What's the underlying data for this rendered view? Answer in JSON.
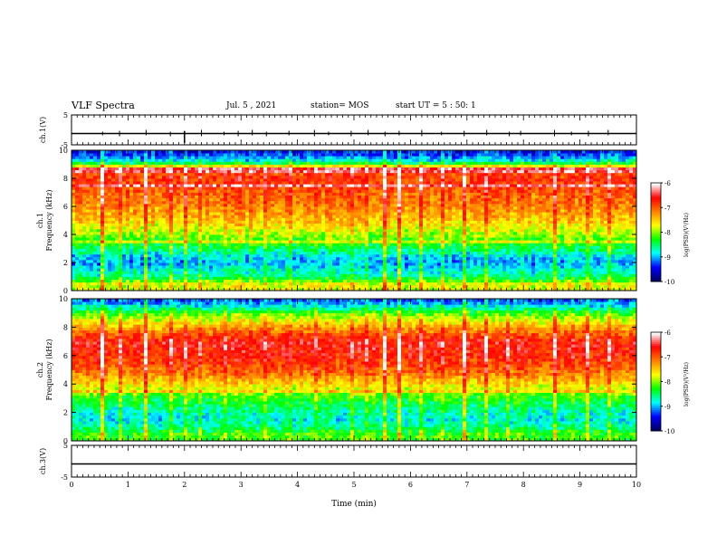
{
  "header": {
    "title": "VLF Spectra",
    "date": "Jul. 5 , 2021",
    "station": "station= MOS",
    "start": "start UT = 5 : 50: 1"
  },
  "chart_data": [
    {
      "id": "ch1_waveform",
      "type": "line",
      "ylabel": "ch.1(V)",
      "ylim": [
        -5,
        5
      ],
      "yticks": [
        "5",
        "-5"
      ],
      "xlim": [
        0,
        10
      ],
      "baseline": 0,
      "color": "#000000"
    },
    {
      "id": "ch1_spectrogram",
      "type": "heatmap",
      "ylabel": "ch.1\nFrequency (kHz)",
      "ylabel_lines": [
        "ch.1",
        "Frequency (kHz)"
      ],
      "xlim": [
        0,
        10
      ],
      "ylim": [
        0,
        10
      ],
      "yticks": [
        "0",
        "2",
        "4",
        "6",
        "8",
        "10"
      ],
      "colorbar": {
        "label": "log(PSD)(V²/Hz)",
        "range": [
          -10,
          -6
        ],
        "ticks": [
          "-6",
          "-7",
          "-8",
          "-9",
          "-10"
        ],
        "colors": [
          "#000060",
          "#0000ff",
          "#00ffff",
          "#00ff00",
          "#ffff00",
          "#ff8000",
          "#ff0000",
          "#ffffff"
        ]
      },
      "profile_log_psd": [
        {
          "freq_khz": 0.5,
          "value": -7.8
        },
        {
          "freq_khz": 1.0,
          "value": -8.6
        },
        {
          "freq_khz": 1.5,
          "value": -8.8
        },
        {
          "freq_khz": 2.0,
          "value": -9.1
        },
        {
          "freq_khz": 2.5,
          "value": -8.9
        },
        {
          "freq_khz": 3.0,
          "value": -8.5
        },
        {
          "freq_khz": 4.0,
          "value": -8.0
        },
        {
          "freq_khz": 5.0,
          "value": -7.5
        },
        {
          "freq_khz": 6.0,
          "value": -7.2
        },
        {
          "freq_khz": 7.0,
          "value": -7.0
        },
        {
          "freq_khz": 8.0,
          "value": -6.8
        },
        {
          "freq_khz": 8.7,
          "value": -7.0
        },
        {
          "freq_khz": 9.2,
          "value": -8.8
        },
        {
          "freq_khz": 9.8,
          "value": -9.4
        }
      ]
    },
    {
      "id": "ch2_spectrogram",
      "type": "heatmap",
      "ylabel": "ch.2\nFrequency (kHz)",
      "ylabel_lines": [
        "ch.2",
        "Frequency (kHz)"
      ],
      "xlim": [
        0,
        10
      ],
      "ylim": [
        0,
        10
      ],
      "yticks": [
        "0",
        "2",
        "4",
        "6",
        "8",
        "10"
      ],
      "colorbar": {
        "label": "log(PSD)(V²/Hz)",
        "range": [
          -10,
          -6
        ],
        "ticks": [
          "-6",
          "-7",
          "-8",
          "-9",
          "-10"
        ],
        "colors": [
          "#000060",
          "#0000ff",
          "#00ffff",
          "#00ff00",
          "#ffff00",
          "#ff8000",
          "#ff0000",
          "#ffffff"
        ]
      },
      "profile_log_psd": [
        {
          "freq_khz": 0.5,
          "value": -8.2
        },
        {
          "freq_khz": 1.0,
          "value": -8.6
        },
        {
          "freq_khz": 1.5,
          "value": -8.8
        },
        {
          "freq_khz": 2.0,
          "value": -8.7
        },
        {
          "freq_khz": 3.0,
          "value": -8.3
        },
        {
          "freq_khz": 4.0,
          "value": -7.6
        },
        {
          "freq_khz": 5.0,
          "value": -7.0
        },
        {
          "freq_khz": 6.0,
          "value": -6.7
        },
        {
          "freq_khz": 7.0,
          "value": -6.6
        },
        {
          "freq_khz": 8.0,
          "value": -7.3
        },
        {
          "freq_khz": 9.0,
          "value": -8.2
        },
        {
          "freq_khz": 9.8,
          "value": -9.2
        }
      ]
    },
    {
      "id": "ch3_waveform",
      "type": "line",
      "ylabel": "ch.3(V)",
      "ylim": [
        -5,
        5
      ],
      "yticks": [
        "5",
        "-5"
      ],
      "xlim": [
        0,
        10
      ],
      "baseline": 0,
      "color": "#000000"
    }
  ],
  "x_axis": {
    "label": "Time (min)",
    "range": [
      0,
      10
    ],
    "ticks": [
      "0",
      "1",
      "2",
      "3",
      "4",
      "5",
      "6",
      "7",
      "8",
      "9",
      "10"
    ]
  },
  "spikes_min": [
    0.55,
    0.85,
    1.32,
    1.75,
    2.0,
    2.3,
    2.7,
    2.95,
    3.2,
    3.45,
    3.85,
    4.3,
    4.55,
    4.95,
    5.25,
    5.55,
    5.8,
    6.2,
    6.55,
    6.95,
    7.35,
    7.75,
    7.95,
    8.55,
    8.85,
    9.15,
    9.5
  ]
}
